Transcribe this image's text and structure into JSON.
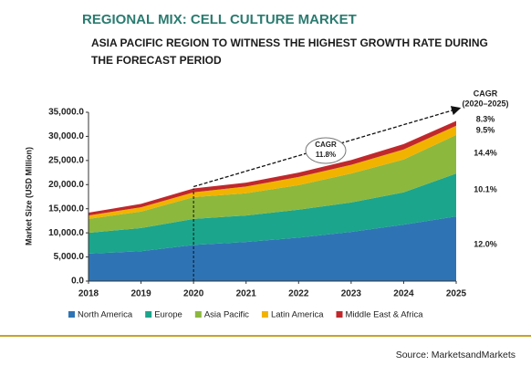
{
  "chart_data": {
    "type": "stacked_area",
    "title": "REGIONAL MIX: CELL CULTURE MARKET",
    "subtitle": "ASIA PACIFIC REGION TO WITNESS THE HIGHEST GROWTH RATE DURING THE FORECAST PERIOD",
    "y_label": "Market Size (USD Million)",
    "x": [
      2018,
      2019,
      2020,
      2021,
      2022,
      2023,
      2024,
      2025
    ],
    "xlim": [
      2018,
      2025
    ],
    "xticks": [
      2018,
      2019,
      2020,
      2021,
      2022,
      2023,
      2024,
      2025
    ],
    "ylim": [
      0,
      35000
    ],
    "yticks": [
      {
        "value": 0,
        "label": "0.0"
      },
      {
        "value": 5000,
        "label": "5,000.0"
      },
      {
        "value": 10000,
        "label": "10,000.0"
      },
      {
        "value": 15000,
        "label": "15,000.0"
      },
      {
        "value": 20000,
        "label": "20,000.0"
      },
      {
        "value": 25000,
        "label": "25,000.0"
      },
      {
        "value": 30000,
        "label": "30,000.0"
      },
      {
        "value": 35000,
        "label": "35,000.0"
      }
    ],
    "series": [
      {
        "name": "North America",
        "color": "#2e74b5",
        "values": [
          5700,
          6200,
          7500,
          8100,
          9000,
          10200,
          11700,
          13400
        ],
        "cagr": "12.0%"
      },
      {
        "name": "Europe",
        "color": "#1ba58c",
        "values": [
          4300,
          4800,
          5400,
          5500,
          5800,
          6100,
          6700,
          8900
        ],
        "cagr": "10.1%"
      },
      {
        "name": "Asia Pacific",
        "color": "#8cb83e",
        "values": [
          2900,
          3400,
          4500,
          4600,
          5100,
          6000,
          6800,
          8000
        ],
        "cagr": "14.4%"
      },
      {
        "name": "Latin America",
        "color": "#f2b300",
        "values": [
          700,
          900,
          1000,
          1400,
          1700,
          1800,
          2100,
          1900
        ],
        "cagr": "9.5%"
      },
      {
        "name": "Middle East & Africa",
        "color": "#c0282c",
        "values": [
          600,
          700,
          800,
          800,
          900,
          1000,
          1100,
          1000
        ],
        "cagr": "8.3%"
      }
    ],
    "cagr_header": "CAGR",
    "cagr_period": "(2020–2025)",
    "overall_cagr_title": "CAGR",
    "overall_cagr": "11.8%",
    "source": "Source: MarketsandMarkets"
  }
}
